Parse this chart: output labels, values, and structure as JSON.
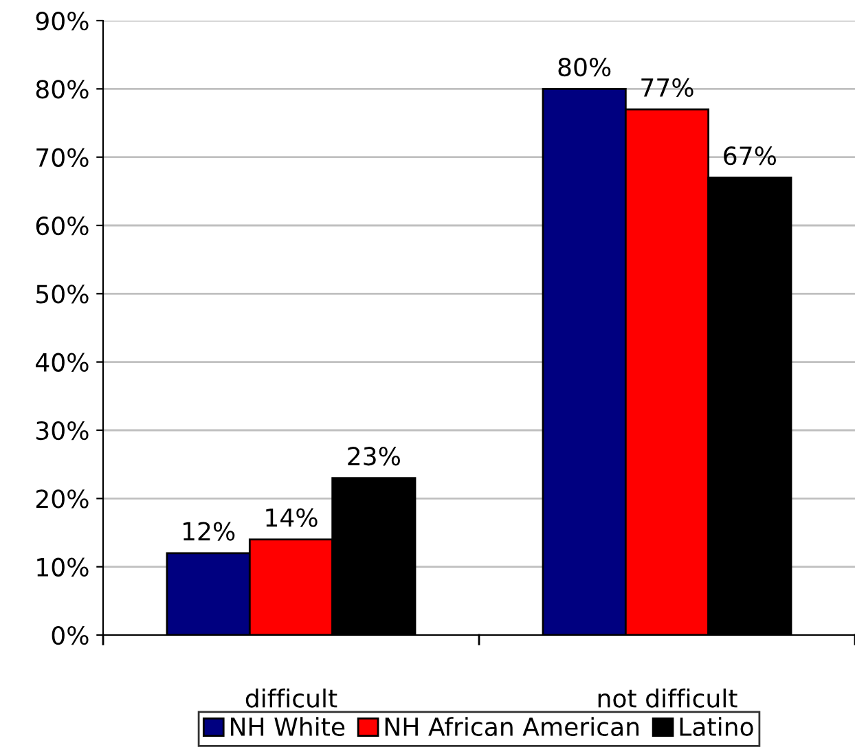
{
  "chart_data": {
    "type": "bar",
    "categories": [
      "difficult",
      "not difficult"
    ],
    "series": [
      {
        "name": "NH White",
        "color": "#000080",
        "values": [
          12,
          80
        ],
        "value_labels": [
          "12%",
          "80%"
        ]
      },
      {
        "name": "NH African American",
        "color": "#ff0000",
        "values": [
          14,
          77
        ],
        "value_labels": [
          "14%",
          "77%"
        ]
      },
      {
        "name": "Latino",
        "color": "#000000",
        "values": [
          23,
          67
        ],
        "value_labels": [
          "23%",
          "67%"
        ]
      }
    ],
    "ylim": [
      0,
      90
    ],
    "yticks": [
      {
        "value": 0,
        "label": "0%"
      },
      {
        "value": 10,
        "label": "10%"
      },
      {
        "value": 20,
        "label": "20%"
      },
      {
        "value": 30,
        "label": "30%"
      },
      {
        "value": 40,
        "label": "40%"
      },
      {
        "value": 50,
        "label": "50%"
      },
      {
        "value": 60,
        "label": "60%"
      },
      {
        "value": 70,
        "label": "70%"
      },
      {
        "value": 80,
        "label": "80%"
      },
      {
        "value": 90,
        "label": "90%"
      }
    ],
    "grid": "y",
    "legend": "bottom"
  }
}
